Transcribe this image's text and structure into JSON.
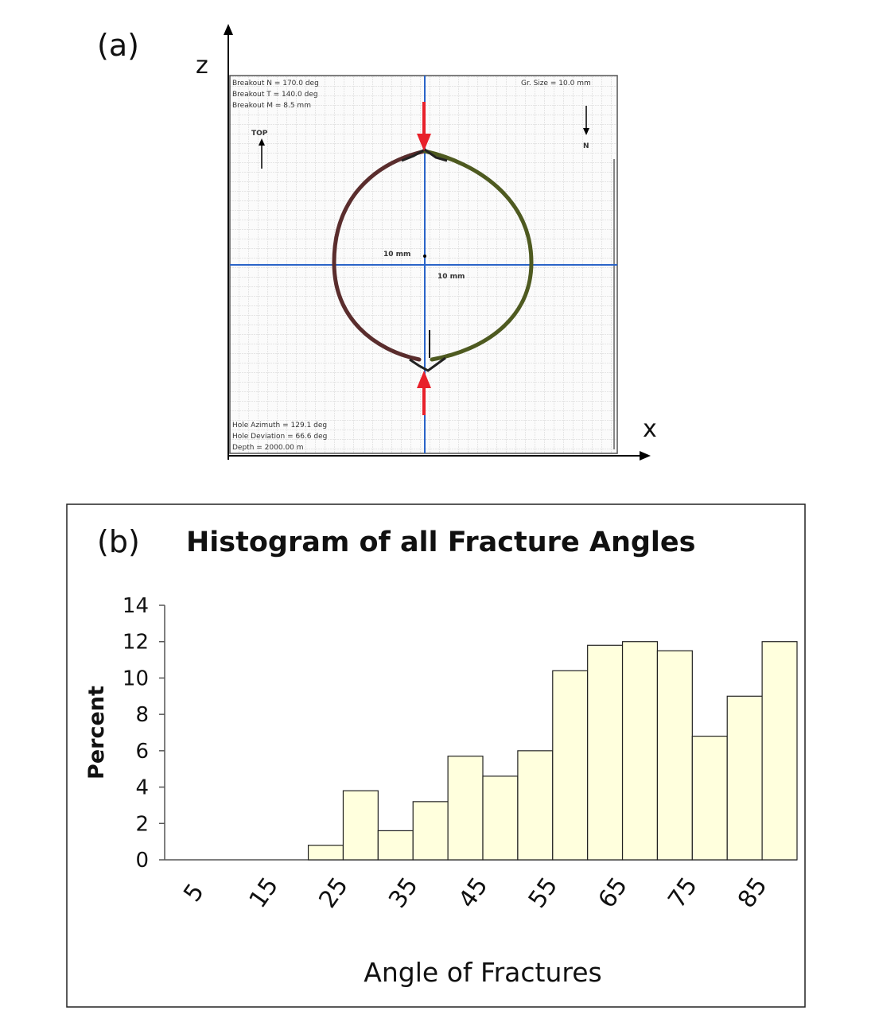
{
  "panel_a": {
    "label": "(a)",
    "axis_z": "z",
    "axis_x": "x",
    "top_label": "TOP",
    "north_label": "N",
    "marker_h": "10 mm",
    "marker_v": "10 mm",
    "info_top_left": [
      "Breakout N = 170.0 deg",
      "Breakout T = 140.0 deg",
      "Breakout M = 8.5 mm"
    ],
    "info_top_right": "Gr. Size = 10.0 mm",
    "info_bottom_left": [
      "Hole Azimuth = 129.1 deg",
      "Hole Deviation = 66.6 deg",
      "Depth = 2000.00 m"
    ],
    "colors": {
      "arrow": "#e8202a",
      "crosshair": "#2a64c8",
      "grid": "#c9c9c9"
    }
  },
  "panel_b": {
    "label": "(b)",
    "colors": {
      "bar_fill": "#ffffdd",
      "bar_stroke": "#222222"
    }
  },
  "chart_data": {
    "type": "bar",
    "title": "Histogram of all Fracture Angles",
    "xlabel": "Angle of Fractures",
    "ylabel": "Percent",
    "ylim": [
      0,
      14
    ],
    "yticks": [
      0,
      2,
      4,
      6,
      8,
      10,
      12,
      14
    ],
    "xtick_labels": [
      "5",
      "15",
      "25",
      "35",
      "45",
      "55",
      "65",
      "75",
      "85"
    ],
    "bin_start": 0,
    "bin_width": 5,
    "values": [
      0,
      0,
      0,
      0,
      0.8,
      3.8,
      1.6,
      3.2,
      5.7,
      4.6,
      6.0,
      10.4,
      11.8,
      12.0,
      11.5,
      6.8,
      9.0,
      12.0
    ],
    "grid": false
  }
}
